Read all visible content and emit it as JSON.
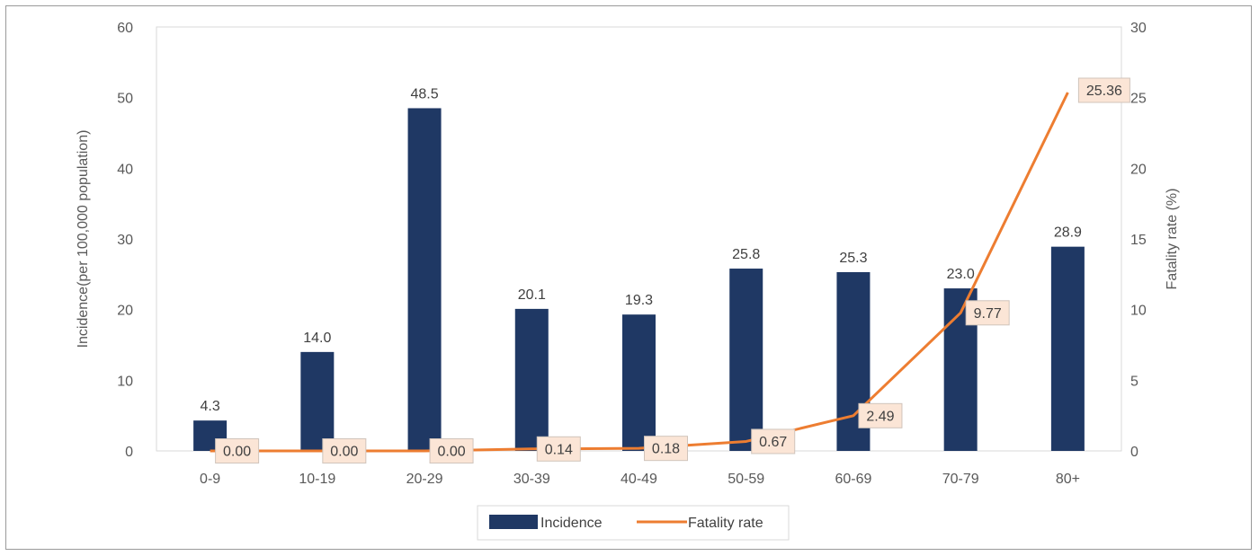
{
  "chart_data": {
    "type": "bar",
    "categories": [
      "0-9",
      "10-19",
      "20-29",
      "30-39",
      "40-49",
      "50-59",
      "60-69",
      "70-79",
      "80+"
    ],
    "series": [
      {
        "name": "Incidence",
        "type": "bar",
        "axis": "left",
        "values": [
          4.3,
          14.0,
          48.5,
          20.1,
          19.3,
          25.8,
          25.3,
          23.0,
          28.9
        ],
        "labels": [
          "4.3",
          "14.0",
          "48.5",
          "20.1",
          "19.3",
          "25.8",
          "25.3",
          "23.0",
          "28.9"
        ]
      },
      {
        "name": "Fatality rate",
        "type": "line",
        "axis": "right",
        "values": [
          0.0,
          0.0,
          0.0,
          0.14,
          0.18,
          0.67,
          2.49,
          9.77,
          25.36
        ],
        "labels": [
          "0.00",
          "0.00",
          "0.00",
          "0.14",
          "0.18",
          "0.67",
          "2.49",
          "9.77",
          "25.36"
        ]
      }
    ],
    "ylabel": "Incidence(per 100,000 population)",
    "y2label": "Fatality rate (%)",
    "ylim": [
      0,
      60
    ],
    "y2lim": [
      0,
      30
    ],
    "yticks": [
      "0",
      "10",
      "20",
      "30",
      "40",
      "50",
      "60"
    ],
    "y2ticks": [
      "0",
      "5",
      "10",
      "15",
      "20",
      "25",
      "30"
    ],
    "grid": false,
    "legend_position": "bottom",
    "colors": {
      "bar": "#1f3864",
      "line": "#ed7d31",
      "label_box_fill": "#fbe5d6",
      "label_box_stroke": "#d0c4bb",
      "axis_text": "#595959"
    }
  }
}
